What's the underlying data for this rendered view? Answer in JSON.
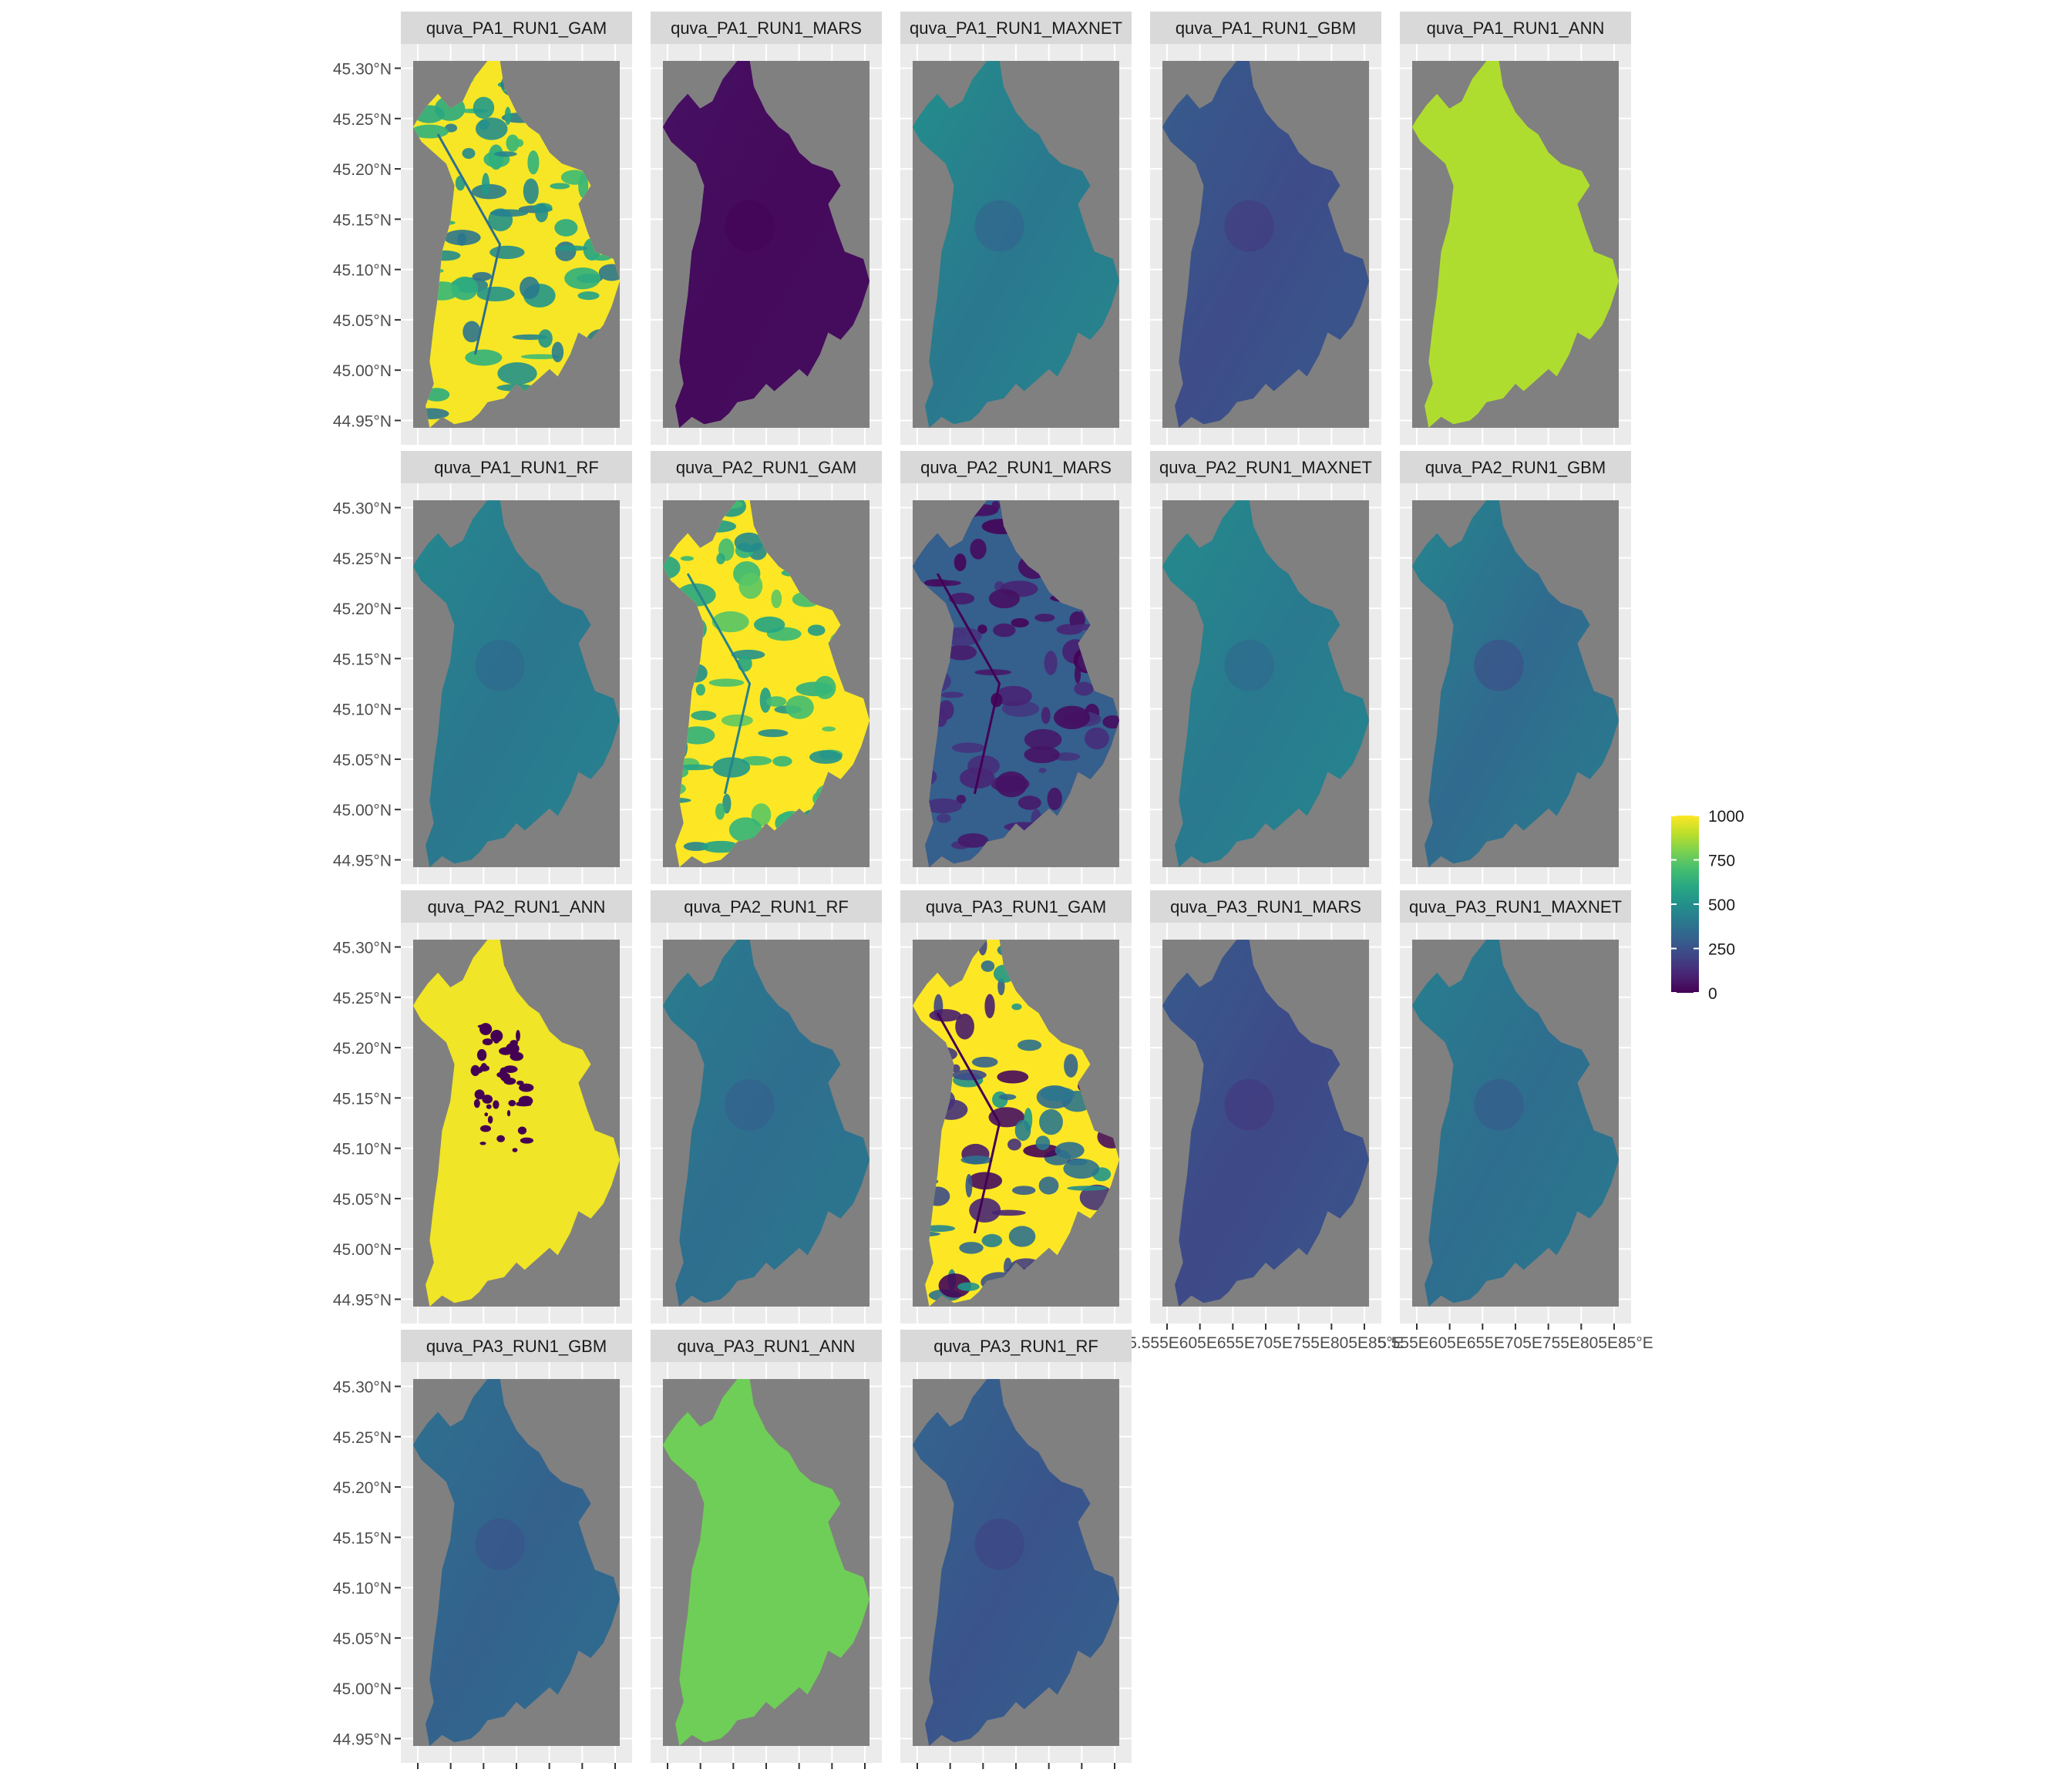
{
  "chart_data": {
    "type": "heatmap",
    "facets": [
      {
        "title": "quva_PA1_RUN1_GAM",
        "pattern": "patchy",
        "base": 780,
        "spread": 420
      },
      {
        "title": "quva_PA1_RUN1_MARS",
        "pattern": "smooth",
        "base": 30,
        "spread": 25
      },
      {
        "title": "quva_PA1_RUN1_MAXNET",
        "pattern": "smooth",
        "base": 430,
        "spread": 120
      },
      {
        "title": "quva_PA1_RUN1_GBM",
        "pattern": "smooth",
        "base": 250,
        "spread": 80
      },
      {
        "title": "quva_PA1_RUN1_ANN",
        "pattern": "flat",
        "base": 880,
        "spread": 0
      },
      {
        "title": "quva_PA1_RUN1_RF",
        "pattern": "smooth",
        "base": 420,
        "spread": 90
      },
      {
        "title": "quva_PA2_RUN1_GAM",
        "pattern": "patchy",
        "base": 850,
        "spread": 400
      },
      {
        "title": "quva_PA2_RUN1_MARS",
        "pattern": "patchy",
        "base": 150,
        "spread": 300
      },
      {
        "title": "quva_PA2_RUN1_MAXNET",
        "pattern": "smooth",
        "base": 430,
        "spread": 100
      },
      {
        "title": "quva_PA2_RUN1_GBM",
        "pattern": "smooth",
        "base": 380,
        "spread": 150
      },
      {
        "title": "quva_PA2_RUN1_ANN",
        "pattern": "binary-mostly-high",
        "base": 980,
        "spread": 0
      },
      {
        "title": "quva_PA2_RUN1_RF",
        "pattern": "smooth",
        "base": 380,
        "spread": 80
      },
      {
        "title": "quva_PA3_RUN1_GAM",
        "pattern": "binary",
        "base": 500,
        "spread": 500
      },
      {
        "title": "quva_PA3_RUN1_MARS",
        "pattern": "smooth",
        "base": 240,
        "spread": 80
      },
      {
        "title": "quva_PA3_RUN1_MAXNET",
        "pattern": "smooth",
        "base": 380,
        "spread": 100
      },
      {
        "title": "quva_PA3_RUN1_GBM",
        "pattern": "smooth",
        "base": 330,
        "spread": 80
      },
      {
        "title": "quva_PA3_RUN1_ANN",
        "pattern": "flat",
        "base": 780,
        "spread": 0
      },
      {
        "title": "quva_PA3_RUN1_RF",
        "pattern": "smooth",
        "base": 280,
        "spread": 80
      }
    ],
    "y_ticks": [
      "45.30°N",
      "45.25°N",
      "45.20°N",
      "45.15°N",
      "45.10°N",
      "45.05°N",
      "45.00°N",
      "44.95°N"
    ],
    "x_ticks": [
      "5.55°E",
      "5.60°E",
      "5.65°E",
      "5.70°E",
      "5.75°E",
      "5.80°E",
      "5.85°E"
    ],
    "x_tick_label_text": "5.555E605E655E705E755E805E85°E",
    "legend": {
      "ticks": [
        1000,
        750,
        500,
        250,
        0
      ],
      "range": [
        0,
        1000
      ],
      "colormap": "viridis"
    },
    "panel_background": "#808080",
    "strip_background": "#d9d9d9",
    "grid": true
  }
}
